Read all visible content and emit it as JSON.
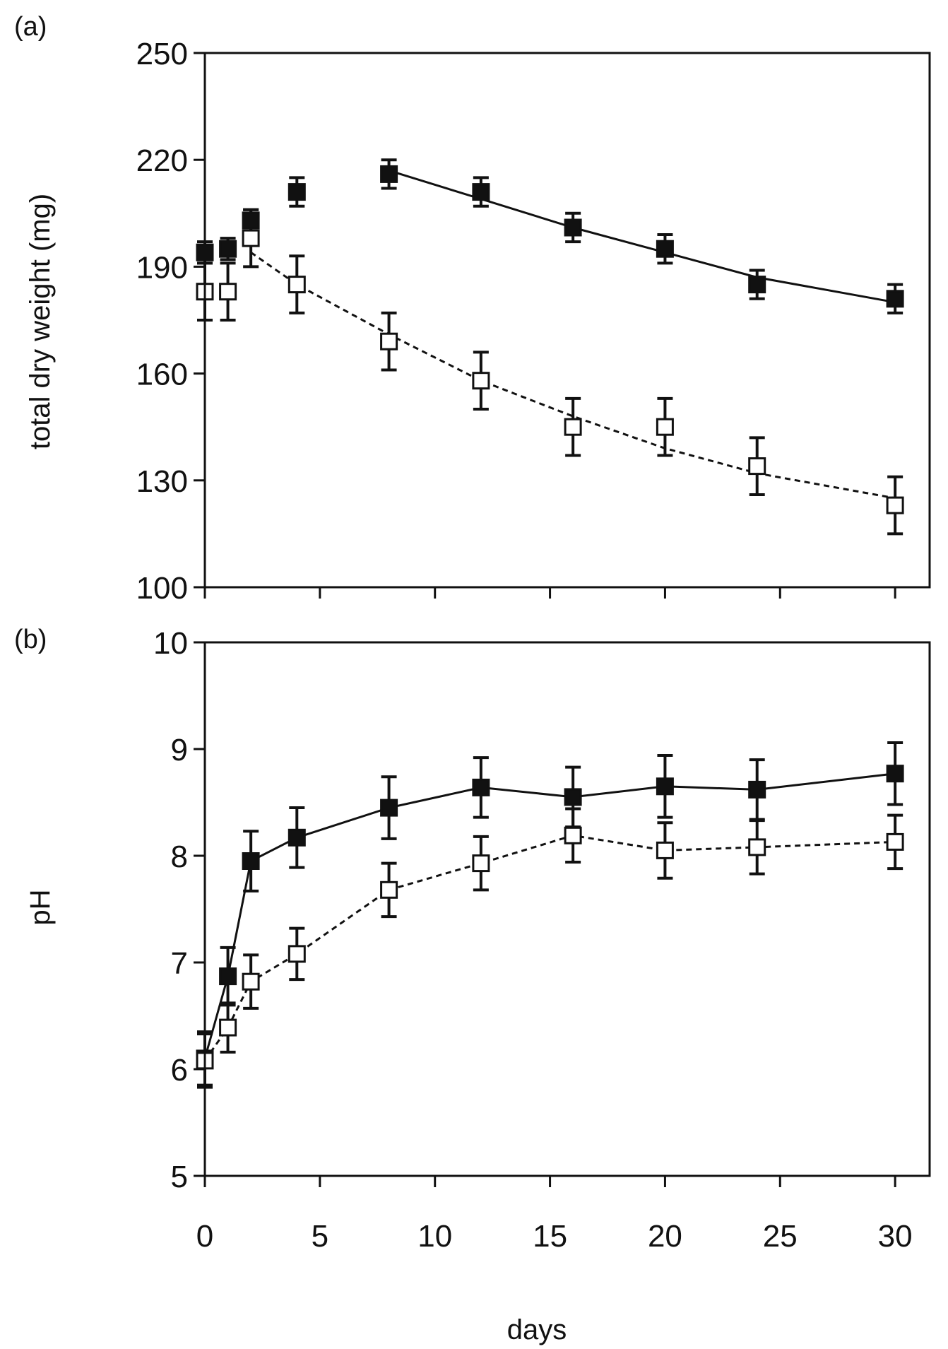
{
  "chart_data": [
    {
      "type": "scatter",
      "panel_label": "(a)",
      "ylabel": "total dry weight (mg)",
      "xlabel": "",
      "xlim": [
        0,
        31.5
      ],
      "ylim": [
        100,
        250
      ],
      "xticks": [
        0,
        5,
        10,
        15,
        20,
        25,
        30
      ],
      "show_x_tick_labels": false,
      "yticks": [
        100,
        130,
        160,
        190,
        220,
        250
      ],
      "ytick_labels": [
        "100",
        "130",
        "160",
        "190",
        "220",
        "250"
      ],
      "grid": false,
      "series": [
        {
          "name": "filled squares",
          "marker": "filled-square",
          "x": [
            0,
            1,
            2,
            4,
            8,
            12,
            16,
            20,
            24,
            30
          ],
          "y": [
            194,
            195,
            203,
            211,
            216,
            211,
            201,
            195,
            185,
            181
          ],
          "err": [
            3,
            3,
            3,
            4,
            4,
            4,
            4,
            4,
            4,
            4
          ],
          "fit": {
            "style": "solid",
            "x": [
              8,
              12,
              16,
              20,
              24,
              30
            ],
            "y": [
              217,
              209,
              201,
              194,
              187,
              180
            ]
          }
        },
        {
          "name": "open squares",
          "marker": "open-square",
          "x": [
            0,
            1,
            2,
            4,
            8,
            12,
            16,
            20,
            24,
            30
          ],
          "y": [
            183,
            183,
            198,
            185,
            169,
            158,
            145,
            145,
            134,
            123
          ],
          "err": [
            8,
            8,
            8,
            8,
            8,
            8,
            8,
            8,
            8,
            8
          ],
          "fit": {
            "style": "dashed",
            "x": [
              2,
              4,
              8,
              12,
              16,
              20,
              24,
              30
            ],
            "y": [
              194,
              185,
              171,
              158,
              148,
              139,
              132,
              125
            ]
          }
        }
      ]
    },
    {
      "type": "line",
      "panel_label": "(b)",
      "ylabel": "pH",
      "xlabel": "days",
      "xlim": [
        0,
        31.5
      ],
      "ylim": [
        5,
        10
      ],
      "xticks": [
        0,
        5,
        10,
        15,
        20,
        25,
        30
      ],
      "xtick_labels": [
        "0",
        "5",
        "10",
        "15",
        "20",
        "25",
        "30"
      ],
      "show_x_tick_labels": true,
      "yticks": [
        5,
        6,
        7,
        8,
        9,
        10
      ],
      "ytick_labels": [
        "5",
        "6",
        "7",
        "8",
        "9",
        "10"
      ],
      "grid": false,
      "series": [
        {
          "name": "filled squares",
          "marker": "filled-square",
          "line_style": "solid",
          "x": [
            0,
            1,
            2,
            4,
            8,
            12,
            16,
            20,
            24,
            30
          ],
          "y": [
            6.1,
            6.87,
            7.95,
            8.17,
            8.45,
            8.64,
            8.55,
            8.65,
            8.62,
            8.77
          ],
          "err": [
            0.25,
            0.27,
            0.28,
            0.28,
            0.29,
            0.28,
            0.28,
            0.29,
            0.28,
            0.29
          ]
        },
        {
          "name": "open squares",
          "marker": "open-square",
          "line_style": "dashed",
          "x": [
            0,
            1,
            2,
            4,
            8,
            12,
            16,
            20,
            24,
            30
          ],
          "y": [
            6.08,
            6.39,
            6.82,
            7.08,
            7.68,
            7.93,
            8.19,
            8.05,
            8.08,
            8.13
          ],
          "err": [
            0.25,
            0.23,
            0.25,
            0.24,
            0.25,
            0.25,
            0.25,
            0.26,
            0.25,
            0.25
          ]
        }
      ]
    }
  ]
}
